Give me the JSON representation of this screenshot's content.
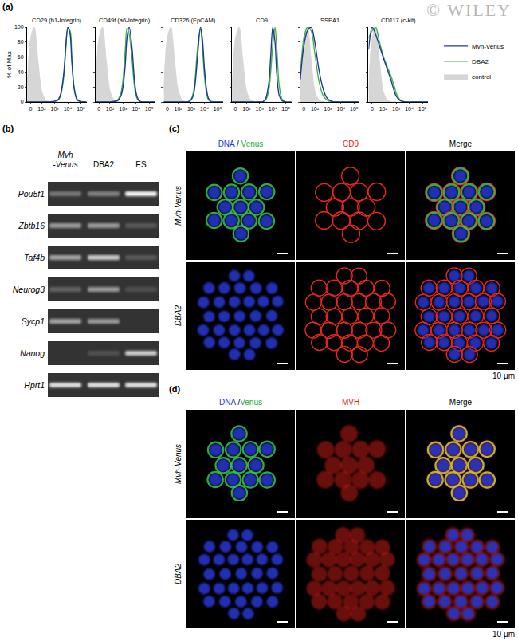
{
  "panels": {
    "a": "(a)",
    "b": "(b)",
    "c": "(c)",
    "d": "(d)"
  },
  "watermark": "© WILEY",
  "chart_data": [
    {
      "type": "line",
      "title": "CD29 (b1-Integrin)",
      "y_label": "% of Max",
      "x": [
        -20,
        0,
        20,
        50,
        100,
        200,
        400,
        700,
        1000,
        1500,
        2000,
        3000,
        5000,
        7000,
        10000,
        15000,
        20000,
        30000,
        50000,
        100000,
        262144
      ],
      "series": [
        {
          "name": "Mvh-Venus",
          "color": "#23388f",
          "values": [
            0,
            0,
            0,
            0,
            0,
            0,
            0,
            0.5,
            1,
            2,
            4,
            12,
            40,
            75,
            100,
            90,
            55,
            18,
            3,
            0.5,
            0
          ]
        },
        {
          "name": "DBA2",
          "color": "#3db54a",
          "values": [
            0,
            0,
            0,
            0,
            0,
            0,
            0,
            0.5,
            1,
            2,
            3,
            10,
            35,
            70,
            98,
            95,
            60,
            20,
            4,
            0.5,
            0
          ]
        },
        {
          "name": "control",
          "color": "#d6d6d6",
          "type": "area",
          "values": [
            15,
            85,
            100,
            55,
            15,
            3,
            0.5,
            0,
            0,
            0,
            0,
            0,
            0,
            0,
            0,
            0,
            0,
            0,
            0,
            0,
            0
          ]
        }
      ],
      "xlim": [
        -20,
        262144
      ],
      "xticks": [
        0,
        {
          "value": 100,
          "label": "10²"
        },
        {
          "value": 1000,
          "label": "10³"
        },
        {
          "value": 10000,
          "label": "10⁴"
        },
        {
          "value": 100000,
          "label": "10⁵"
        }
      ],
      "ylim": [
        0,
        100
      ],
      "yticks": [
        0,
        20,
        40,
        60,
        80,
        100
      ],
      "grid": false
    },
    {
      "type": "line",
      "title": "CD49f (a6-Integrin)",
      "x": [
        -20,
        0,
        20,
        50,
        100,
        200,
        400,
        700,
        1000,
        1500,
        2000,
        3000,
        5000,
        7000,
        10000,
        15000,
        20000,
        30000,
        50000,
        100000,
        262144
      ],
      "series": [
        {
          "name": "Mvh-Venus",
          "color": "#23388f",
          "values": [
            0,
            0,
            0,
            0,
            0,
            0.5,
            2,
            8,
            20,
            50,
            85,
            100,
            70,
            35,
            12,
            3,
            1,
            0,
            0,
            0,
            0
          ]
        },
        {
          "name": "DBA2",
          "color": "#3db54a",
          "values": [
            0,
            0,
            0,
            0,
            0,
            1,
            3,
            12,
            30,
            70,
            98,
            90,
            55,
            25,
            8,
            2,
            0.5,
            0,
            0,
            0,
            0
          ]
        },
        {
          "name": "control",
          "color": "#d6d6d6",
          "type": "area",
          "values": [
            15,
            85,
            100,
            55,
            15,
            3,
            0.5,
            0,
            0,
            0,
            0,
            0,
            0,
            0,
            0,
            0,
            0,
            0,
            0,
            0,
            0
          ]
        }
      ],
      "xlim": [
        -20,
        262144
      ],
      "xticks": [
        0,
        {
          "value": 100,
          "label": "10²"
        },
        {
          "value": 1000,
          "label": "10³"
        },
        {
          "value": 10000,
          "label": "10⁴"
        },
        {
          "value": 100000,
          "label": "10⁵"
        }
      ],
      "ylim": [
        0,
        100
      ],
      "yticks": [
        0,
        20,
        40,
        60,
        80,
        100
      ],
      "grid": false,
      "tick_labels": "x"
    },
    {
      "type": "line",
      "title": "CD326 (EpCAM)",
      "x": [
        -20,
        0,
        20,
        50,
        100,
        200,
        400,
        700,
        1000,
        1500,
        2000,
        3000,
        5000,
        7000,
        10000,
        15000,
        20000,
        30000,
        50000,
        100000,
        262144
      ],
      "series": [
        {
          "name": "Mvh-Venus",
          "color": "#23388f",
          "values": [
            0,
            0,
            0,
            0,
            0,
            0,
            0,
            1,
            3,
            10,
            25,
            60,
            100,
            85,
            45,
            15,
            5,
            1,
            0,
            0,
            0
          ]
        },
        {
          "name": "DBA2",
          "color": "#3db54a",
          "values": [
            0,
            0,
            0,
            0,
            0,
            0,
            0,
            1,
            4,
            14,
            32,
            72,
            98,
            75,
            35,
            10,
            3,
            0.5,
            0,
            0,
            0
          ]
        },
        {
          "name": "control",
          "color": "#d6d6d6",
          "type": "area",
          "values": [
            15,
            85,
            100,
            55,
            15,
            3,
            0.5,
            0,
            0,
            0,
            0,
            0,
            0,
            0,
            0,
            0,
            0,
            0,
            0,
            0,
            0
          ]
        }
      ],
      "xlim": [
        -20,
        262144
      ],
      "xticks": [
        0,
        {
          "value": 100,
          "label": "10²"
        },
        {
          "value": 1000,
          "label": "10³"
        },
        {
          "value": 10000,
          "label": "10⁴"
        },
        {
          "value": 100000,
          "label": "10⁵"
        }
      ],
      "ylim": [
        0,
        100
      ],
      "yticks": [
        0,
        20,
        40,
        60,
        80,
        100
      ],
      "grid": false,
      "tick_labels": "x"
    },
    {
      "type": "line",
      "title": "CD9",
      "x": [
        -20,
        0,
        20,
        50,
        100,
        200,
        400,
        700,
        1000,
        1500,
        2000,
        3000,
        5000,
        7000,
        10000,
        15000,
        20000,
        30000,
        50000,
        100000,
        262144
      ],
      "series": [
        {
          "name": "Mvh-Venus",
          "color": "#23388f",
          "values": [
            0,
            0,
            0,
            0,
            0,
            0,
            0,
            0,
            0,
            0,
            1,
            5,
            25,
            60,
            100,
            80,
            40,
            10,
            2,
            0,
            0
          ]
        },
        {
          "name": "DBA2",
          "color": "#3db54a",
          "values": [
            0,
            0,
            0,
            0,
            0,
            0,
            0,
            0,
            0,
            0,
            0.5,
            3,
            15,
            40,
            75,
            100,
            75,
            25,
            4,
            0,
            0
          ]
        },
        {
          "name": "control",
          "color": "#d6d6d6",
          "type": "area",
          "values": [
            15,
            85,
            100,
            55,
            15,
            3,
            0.5,
            0,
            0,
            0,
            0,
            0,
            0,
            0,
            0,
            0,
            0,
            0,
            0,
            0,
            0
          ]
        }
      ],
      "xlim": [
        -20,
        262144
      ],
      "xticks": [
        0,
        {
          "value": 100,
          "label": "10²"
        },
        {
          "value": 1000,
          "label": "10³"
        },
        {
          "value": 10000,
          "label": "10⁴"
        },
        {
          "value": 100000,
          "label": "10⁵"
        }
      ],
      "ylim": [
        0,
        100
      ],
      "yticks": [
        0,
        20,
        40,
        60,
        80,
        100
      ],
      "grid": false,
      "tick_labels": "x"
    },
    {
      "type": "line",
      "title": "SSEA1",
      "x": [
        -20,
        0,
        20,
        50,
        100,
        200,
        400,
        700,
        1000,
        1500,
        2000,
        3000,
        5000,
        7000,
        10000,
        15000,
        20000,
        30000,
        50000,
        100000,
        262144
      ],
      "series": [
        {
          "name": "Mvh-Venus",
          "color": "#23388f",
          "values": [
            30,
            75,
            95,
            100,
            80,
            45,
            20,
            8,
            4,
            2,
            1,
            0,
            0,
            0,
            0,
            0,
            0,
            0,
            0,
            0,
            0
          ]
        },
        {
          "name": "DBA2",
          "color": "#3db54a",
          "values": [
            35,
            85,
            100,
            95,
            65,
            30,
            10,
            4,
            2,
            1,
            0.5,
            0,
            0,
            0,
            0,
            0,
            0,
            0,
            0,
            0,
            0
          ]
        },
        {
          "name": "control",
          "color": "#d6d6d6",
          "type": "area",
          "values": [
            15,
            85,
            100,
            55,
            15,
            3,
            0.5,
            0,
            0,
            0,
            0,
            0,
            0,
            0,
            0,
            0,
            0,
            0,
            0,
            0,
            0
          ]
        }
      ],
      "xlim": [
        -20,
        262144
      ],
      "xticks": [
        0,
        {
          "value": 100,
          "label": "10²"
        },
        {
          "value": 1000,
          "label": "10³"
        },
        {
          "value": 10000,
          "label": "10⁴"
        },
        {
          "value": 100000,
          "label": "10⁵"
        }
      ],
      "ylim": [
        0,
        100
      ],
      "yticks": [
        0,
        20,
        40,
        60,
        80,
        100
      ],
      "grid": false,
      "tick_labels": "x"
    },
    {
      "type": "line",
      "title": "CD117 (c-kit)",
      "x": [
        -20,
        0,
        20,
        50,
        100,
        200,
        400,
        700,
        1000,
        1500,
        2000,
        3000,
        5000,
        7000,
        10000,
        15000,
        20000,
        30000,
        50000,
        100000,
        262144
      ],
      "series": [
        {
          "name": "Mvh-Venus",
          "color": "#23388f",
          "values": [
            70,
            100,
            90,
            75,
            60,
            45,
            30,
            15,
            8,
            4,
            2,
            1,
            0,
            0,
            0,
            0,
            0,
            0,
            0,
            0,
            0
          ]
        },
        {
          "name": "DBA2",
          "color": "#3db54a",
          "values": [
            85,
            95,
            100,
            80,
            62,
            48,
            35,
            22,
            12,
            6,
            3,
            1,
            0,
            0,
            0,
            0,
            0,
            0,
            0,
            0,
            0
          ]
        },
        {
          "name": "control",
          "color": "#d6d6d6",
          "type": "area",
          "values": [
            15,
            85,
            100,
            55,
            15,
            3,
            0.5,
            0,
            0,
            0,
            0,
            0,
            0,
            0,
            0,
            0,
            0,
            0,
            0,
            0,
            0
          ]
        }
      ],
      "xlim": [
        -20,
        262144
      ],
      "xticks": [
        0,
        {
          "value": 100,
          "label": "10²"
        },
        {
          "value": 1000,
          "label": "10³"
        },
        {
          "value": 10000,
          "label": "10⁴"
        },
        {
          "value": 100000,
          "label": "10⁵"
        }
      ],
      "ylim": [
        0,
        100
      ],
      "yticks": [
        0,
        20,
        40,
        60,
        80,
        100
      ],
      "grid": false,
      "tick_labels": "x",
      "legend": "right"
    }
  ],
  "gel": {
    "columns": [
      [
        "Mvh",
        "-Venus"
      ],
      [
        "DBA2"
      ],
      [
        "ES"
      ]
    ],
    "rows": [
      {
        "gene": "Pou5f1",
        "bands": [
          0.35,
          0.4,
          1.0
        ]
      },
      {
        "gene": "Zbtb16",
        "bands": [
          0.55,
          0.55,
          0.2
        ]
      },
      {
        "gene": "Taf4b",
        "bands": [
          0.6,
          0.8,
          0.2
        ]
      },
      {
        "gene": "Neurog3",
        "bands": [
          0.25,
          0.55,
          0.15
        ]
      },
      {
        "gene": "Sycp1",
        "bands": [
          0.6,
          0.55,
          0.0
        ]
      },
      {
        "gene": "Nanog",
        "bands": [
          0.0,
          0.15,
          0.8
        ]
      },
      {
        "gene": "Hprt1",
        "bands": [
          0.9,
          0.9,
          0.9
        ]
      }
    ]
  },
  "microscopy": {
    "c": {
      "channels": [
        "DNA / Venus",
        "CD9",
        "Merge"
      ],
      "rows": [
        "Mvh-Venus",
        "DBA2"
      ],
      "scale_bar": "10 µm"
    },
    "d": {
      "channels": [
        "DNA /Venus",
        "MVH",
        "Merge"
      ],
      "rows": [
        "Mvh-Venus",
        "DBA2"
      ],
      "scale_bar": "10 µm"
    }
  }
}
